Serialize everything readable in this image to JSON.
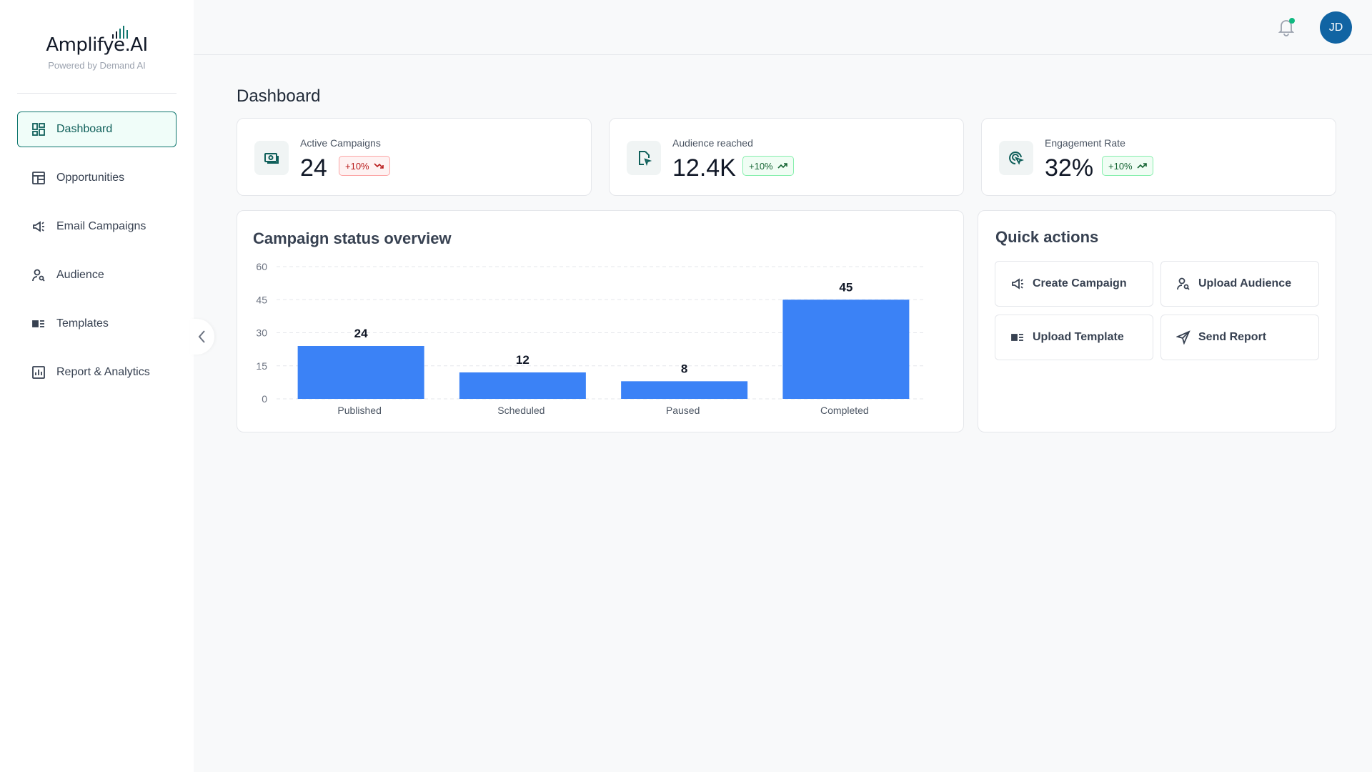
{
  "brand": {
    "name": "Amplifye.AI",
    "tagline": "Powered by Demand AI"
  },
  "sidebar": {
    "items": [
      {
        "label": "Dashboard",
        "icon": "dashboard-grid-icon",
        "active": true
      },
      {
        "label": "Opportunities",
        "icon": "layout-icon"
      },
      {
        "label": "Email Campaigns",
        "icon": "megaphone-icon"
      },
      {
        "label": "Audience",
        "icon": "user-search-icon"
      },
      {
        "label": "Templates",
        "icon": "template-icon"
      },
      {
        "label": "Report & Analytics",
        "icon": "bar-chart-icon"
      }
    ]
  },
  "header": {
    "avatar_initials": "JD",
    "notification_dot_color": "#10b981"
  },
  "page": {
    "title": "Dashboard"
  },
  "stats": [
    {
      "label": "Active Campaigns",
      "value": "24",
      "change": "+10%",
      "trend": "down",
      "icon": "money-icon"
    },
    {
      "label": "Audience reached",
      "value": "12.4K",
      "change": "+10%",
      "trend": "up",
      "icon": "file-cursor-icon"
    },
    {
      "label": "Engagement Rate",
      "value": "32%",
      "change": "+10%",
      "trend": "up",
      "icon": "target-click-icon"
    }
  ],
  "chart_title": "Campaign status overview",
  "chart_data": {
    "type": "bar",
    "title": "",
    "categories": [
      "Published",
      "Scheduled",
      "Paused",
      "Completed"
    ],
    "values": [
      24,
      12,
      8,
      45
    ],
    "ylim": [
      0,
      60
    ],
    "yticks": [
      0,
      15,
      30,
      45,
      60
    ],
    "grid": true,
    "bar_color": "#3b82f6"
  },
  "quick_actions": {
    "title": "Quick actions",
    "buttons": [
      {
        "label": "Create Campaign",
        "icon": "megaphone-icon"
      },
      {
        "label": "Upload Audience",
        "icon": "user-search-icon"
      },
      {
        "label": "Upload Template",
        "icon": "template-icon"
      },
      {
        "label": "Send Report",
        "icon": "send-icon"
      }
    ]
  }
}
